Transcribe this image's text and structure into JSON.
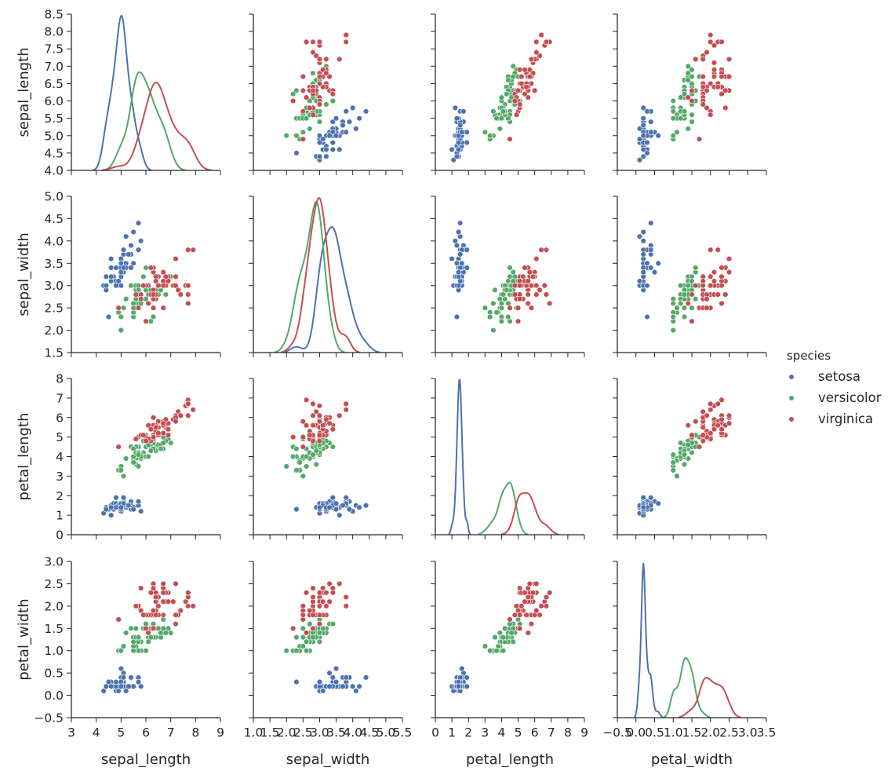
{
  "chart_data": {
    "type": "scatter",
    "layout": "pairplot",
    "variables": [
      "sepal_length",
      "sepal_width",
      "petal_length",
      "petal_width"
    ],
    "axes": {
      "sepal_length": {
        "range": [
          3,
          9
        ],
        "ticks": [
          3,
          4,
          5,
          6,
          7,
          8,
          9
        ],
        "tick_labels": [
          "3",
          "4",
          "5",
          "6",
          "7",
          "8",
          "9"
        ]
      },
      "sepal_width": {
        "range": [
          1,
          5.5
        ],
        "ticks": [
          1.0,
          1.5,
          2.0,
          2.5,
          3.0,
          3.5,
          4.0,
          4.5,
          5.0,
          5.5
        ],
        "tick_labels": [
          "1.0",
          "1.5",
          "2.0",
          "2.5",
          "3.0",
          "3.5",
          "4.0",
          "4.5",
          "5.0",
          "5.5"
        ]
      },
      "petal_length": {
        "range": [
          0,
          9
        ],
        "ticks": [
          0,
          1,
          2,
          3,
          4,
          5,
          6,
          7,
          8,
          9
        ],
        "tick_labels": [
          "0",
          "1",
          "2",
          "3",
          "4",
          "5",
          "6",
          "7",
          "8",
          "9"
        ]
      },
      "petal_width": {
        "range": [
          -0.5,
          3.5
        ],
        "ticks": [
          -0.5,
          0.0,
          0.5,
          1.0,
          1.5,
          2.0,
          2.5,
          3.0,
          3.5
        ],
        "tick_labels": [
          "−0.5",
          "0.0",
          "0.5",
          "1.0",
          "1.5",
          "2.0",
          "2.5",
          "3.0",
          "3.5"
        ]
      }
    },
    "row_axes": {
      "sepal_length": {
        "range": [
          4,
          8.5
        ],
        "ticks": [
          4.0,
          4.5,
          5.0,
          5.5,
          6.0,
          6.5,
          7.0,
          7.5,
          8.0,
          8.5
        ],
        "tick_labels": [
          "4.0",
          "4.5",
          "5.0",
          "5.5",
          "6.0",
          "6.5",
          "7.0",
          "7.5",
          "8.0",
          "8.5"
        ]
      },
      "sepal_width": {
        "range": [
          1.5,
          5
        ],
        "ticks": [
          1.5,
          2.0,
          2.5,
          3.0,
          3.5,
          4.0,
          4.5,
          5.0
        ],
        "tick_labels": [
          "1.5",
          "2.0",
          "2.5",
          "3.0",
          "3.5",
          "4.0",
          "4.5",
          "5.0"
        ]
      },
      "petal_length": {
        "range": [
          0,
          8
        ],
        "ticks": [
          0,
          1,
          2,
          3,
          4,
          5,
          6,
          7,
          8
        ],
        "tick_labels": [
          "0",
          "1",
          "2",
          "3",
          "4",
          "5",
          "6",
          "7",
          "8"
        ]
      },
      "petal_width": {
        "range": [
          -0.5,
          3
        ],
        "ticks": [
          -0.5,
          0.0,
          0.5,
          1.0,
          1.5,
          2.0,
          2.5,
          3.0
        ],
        "tick_labels": [
          "−0.5",
          "0.0",
          "0.5",
          "1.0",
          "1.5",
          "2.0",
          "2.5",
          "3.0"
        ]
      }
    },
    "legend": {
      "title": "species",
      "entries": [
        {
          "label": "setosa",
          "color": "#4c72b0"
        },
        {
          "label": "versicolor",
          "color": "#55a868"
        },
        {
          "label": "virginica",
          "color": "#c44e52"
        }
      ],
      "placement": "right"
    },
    "grid": false,
    "diagonal": "kde",
    "series": [
      {
        "name": "setosa",
        "color": "#4c72b0",
        "values": [
          [
            5.1,
            3.5,
            1.4,
            0.2
          ],
          [
            4.9,
            3.0,
            1.4,
            0.2
          ],
          [
            4.7,
            3.2,
            1.3,
            0.2
          ],
          [
            4.6,
            3.1,
            1.5,
            0.2
          ],
          [
            5.0,
            3.6,
            1.4,
            0.2
          ],
          [
            5.4,
            3.9,
            1.7,
            0.4
          ],
          [
            4.6,
            3.4,
            1.4,
            0.3
          ],
          [
            5.0,
            3.4,
            1.5,
            0.2
          ],
          [
            4.4,
            2.9,
            1.4,
            0.2
          ],
          [
            4.9,
            3.1,
            1.5,
            0.1
          ],
          [
            5.4,
            3.7,
            1.5,
            0.2
          ],
          [
            4.8,
            3.4,
            1.6,
            0.2
          ],
          [
            4.8,
            3.0,
            1.4,
            0.1
          ],
          [
            4.3,
            3.0,
            1.1,
            0.1
          ],
          [
            5.8,
            4.0,
            1.2,
            0.2
          ],
          [
            5.7,
            4.4,
            1.5,
            0.4
          ],
          [
            5.4,
            3.9,
            1.3,
            0.4
          ],
          [
            5.1,
            3.5,
            1.4,
            0.3
          ],
          [
            5.7,
            3.8,
            1.7,
            0.3
          ],
          [
            5.1,
            3.8,
            1.5,
            0.3
          ],
          [
            5.4,
            3.4,
            1.7,
            0.2
          ],
          [
            5.1,
            3.7,
            1.5,
            0.4
          ],
          [
            4.6,
            3.6,
            1.0,
            0.2
          ],
          [
            5.1,
            3.3,
            1.7,
            0.5
          ],
          [
            4.8,
            3.4,
            1.9,
            0.2
          ],
          [
            5.0,
            3.0,
            1.6,
            0.2
          ],
          [
            5.0,
            3.4,
            1.6,
            0.4
          ],
          [
            5.2,
            3.5,
            1.5,
            0.2
          ],
          [
            5.2,
            3.4,
            1.4,
            0.2
          ],
          [
            4.7,
            3.2,
            1.6,
            0.2
          ],
          [
            4.8,
            3.1,
            1.6,
            0.2
          ],
          [
            5.4,
            3.4,
            1.5,
            0.4
          ],
          [
            5.2,
            4.1,
            1.5,
            0.1
          ],
          [
            5.5,
            4.2,
            1.4,
            0.2
          ],
          [
            4.9,
            3.1,
            1.5,
            0.1
          ],
          [
            5.0,
            3.2,
            1.2,
            0.2
          ],
          [
            5.5,
            3.5,
            1.3,
            0.2
          ],
          [
            4.9,
            3.1,
            1.5,
            0.1
          ],
          [
            4.4,
            3.0,
            1.3,
            0.2
          ],
          [
            5.1,
            3.4,
            1.5,
            0.2
          ],
          [
            5.0,
            3.5,
            1.3,
            0.3
          ],
          [
            4.5,
            2.3,
            1.3,
            0.3
          ],
          [
            4.4,
            3.2,
            1.3,
            0.2
          ],
          [
            5.0,
            3.5,
            1.6,
            0.6
          ],
          [
            5.1,
            3.8,
            1.9,
            0.4
          ],
          [
            4.8,
            3.0,
            1.4,
            0.3
          ],
          [
            5.1,
            3.8,
            1.6,
            0.2
          ],
          [
            4.6,
            3.2,
            1.4,
            0.2
          ],
          [
            5.3,
            3.7,
            1.5,
            0.2
          ],
          [
            5.0,
            3.3,
            1.4,
            0.2
          ]
        ]
      },
      {
        "name": "versicolor",
        "color": "#55a868",
        "values": [
          [
            7.0,
            3.2,
            4.7,
            1.4
          ],
          [
            6.4,
            3.2,
            4.5,
            1.5
          ],
          [
            6.9,
            3.1,
            4.9,
            1.5
          ],
          [
            5.5,
            2.3,
            4.0,
            1.3
          ],
          [
            6.5,
            2.8,
            4.6,
            1.5
          ],
          [
            5.7,
            2.8,
            4.5,
            1.3
          ],
          [
            6.3,
            3.3,
            4.7,
            1.6
          ],
          [
            4.9,
            2.4,
            3.3,
            1.0
          ],
          [
            6.6,
            2.9,
            4.6,
            1.3
          ],
          [
            5.2,
            2.7,
            3.9,
            1.4
          ],
          [
            5.0,
            2.0,
            3.5,
            1.0
          ],
          [
            5.9,
            3.0,
            4.2,
            1.5
          ],
          [
            6.0,
            2.2,
            4.0,
            1.0
          ],
          [
            6.1,
            2.9,
            4.7,
            1.4
          ],
          [
            5.6,
            2.9,
            3.6,
            1.3
          ],
          [
            6.7,
            3.1,
            4.4,
            1.4
          ],
          [
            5.6,
            3.0,
            4.5,
            1.5
          ],
          [
            5.8,
            2.7,
            4.1,
            1.0
          ],
          [
            6.2,
            2.2,
            4.5,
            1.5
          ],
          [
            5.6,
            2.5,
            3.9,
            1.1
          ],
          [
            5.9,
            3.2,
            4.8,
            1.8
          ],
          [
            6.1,
            2.8,
            4.0,
            1.3
          ],
          [
            6.3,
            2.5,
            4.9,
            1.5
          ],
          [
            6.1,
            2.8,
            4.7,
            1.2
          ],
          [
            6.4,
            2.9,
            4.3,
            1.3
          ],
          [
            6.6,
            3.0,
            4.4,
            1.4
          ],
          [
            6.8,
            2.8,
            4.8,
            1.4
          ],
          [
            6.7,
            3.0,
            5.0,
            1.7
          ],
          [
            6.0,
            2.9,
            4.5,
            1.5
          ],
          [
            5.7,
            2.6,
            3.5,
            1.0
          ],
          [
            5.5,
            2.4,
            3.8,
            1.1
          ],
          [
            5.5,
            2.4,
            3.7,
            1.0
          ],
          [
            5.8,
            2.7,
            3.9,
            1.2
          ],
          [
            6.0,
            2.7,
            5.1,
            1.6
          ],
          [
            5.4,
            3.0,
            4.5,
            1.5
          ],
          [
            6.0,
            3.4,
            4.5,
            1.6
          ],
          [
            6.7,
            3.1,
            4.7,
            1.5
          ],
          [
            6.3,
            2.3,
            4.4,
            1.3
          ],
          [
            5.6,
            3.0,
            4.1,
            1.3
          ],
          [
            5.5,
            2.5,
            4.0,
            1.3
          ],
          [
            5.5,
            2.6,
            4.4,
            1.2
          ],
          [
            6.1,
            3.0,
            4.6,
            1.4
          ],
          [
            5.8,
            2.6,
            4.0,
            1.2
          ],
          [
            5.0,
            2.3,
            3.3,
            1.0
          ],
          [
            5.6,
            2.7,
            4.2,
            1.3
          ],
          [
            5.7,
            3.0,
            4.2,
            1.2
          ],
          [
            5.7,
            2.9,
            4.2,
            1.3
          ],
          [
            6.2,
            2.9,
            4.3,
            1.3
          ],
          [
            5.1,
            2.5,
            3.0,
            1.1
          ],
          [
            5.7,
            2.8,
            4.1,
            1.3
          ]
        ]
      },
      {
        "name": "virginica",
        "color": "#c44e52",
        "values": [
          [
            6.3,
            3.3,
            6.0,
            2.5
          ],
          [
            5.8,
            2.7,
            5.1,
            1.9
          ],
          [
            7.1,
            3.0,
            5.9,
            2.1
          ],
          [
            6.3,
            2.9,
            5.6,
            1.8
          ],
          [
            6.5,
            3.0,
            5.8,
            2.2
          ],
          [
            7.6,
            3.0,
            6.6,
            2.1
          ],
          [
            4.9,
            2.5,
            4.5,
            1.7
          ],
          [
            7.3,
            2.9,
            6.3,
            1.8
          ],
          [
            6.7,
            2.5,
            5.8,
            1.8
          ],
          [
            7.2,
            3.6,
            6.1,
            2.5
          ],
          [
            6.5,
            3.2,
            5.1,
            2.0
          ],
          [
            6.4,
            2.7,
            5.3,
            1.9
          ],
          [
            6.8,
            3.0,
            5.5,
            2.1
          ],
          [
            5.7,
            2.5,
            5.0,
            2.0
          ],
          [
            5.8,
            2.8,
            5.1,
            2.4
          ],
          [
            6.4,
            3.2,
            5.3,
            2.3
          ],
          [
            6.5,
            3.0,
            5.5,
            1.8
          ],
          [
            7.7,
            3.8,
            6.7,
            2.2
          ],
          [
            7.7,
            2.6,
            6.9,
            2.3
          ],
          [
            6.0,
            2.2,
            5.0,
            1.5
          ],
          [
            6.9,
            3.2,
            5.7,
            2.3
          ],
          [
            5.6,
            2.8,
            4.9,
            2.0
          ],
          [
            7.7,
            2.8,
            6.7,
            2.0
          ],
          [
            6.3,
            2.7,
            4.9,
            1.8
          ],
          [
            6.7,
            3.3,
            5.7,
            2.1
          ],
          [
            7.2,
            3.2,
            6.0,
            1.8
          ],
          [
            6.2,
            2.8,
            4.8,
            1.8
          ],
          [
            6.1,
            3.0,
            4.9,
            1.8
          ],
          [
            6.4,
            2.8,
            5.6,
            2.1
          ],
          [
            7.2,
            3.0,
            5.8,
            1.6
          ],
          [
            7.4,
            2.8,
            6.1,
            1.9
          ],
          [
            7.9,
            3.8,
            6.4,
            2.0
          ],
          [
            6.4,
            2.8,
            5.6,
            2.2
          ],
          [
            6.3,
            2.8,
            5.1,
            1.5
          ],
          [
            6.1,
            2.6,
            5.6,
            1.4
          ],
          [
            7.7,
            3.0,
            6.1,
            2.3
          ],
          [
            6.3,
            3.4,
            5.6,
            2.4
          ],
          [
            6.4,
            3.1,
            5.5,
            1.8
          ],
          [
            6.0,
            3.0,
            4.8,
            1.8
          ],
          [
            6.9,
            3.1,
            5.4,
            2.1
          ],
          [
            6.7,
            3.1,
            5.6,
            2.4
          ],
          [
            6.9,
            3.1,
            5.1,
            2.3
          ],
          [
            5.8,
            2.7,
            5.1,
            1.9
          ],
          [
            6.8,
            3.2,
            5.9,
            2.3
          ],
          [
            6.7,
            3.3,
            5.7,
            2.5
          ],
          [
            6.7,
            3.0,
            5.2,
            2.3
          ],
          [
            6.3,
            2.5,
            5.0,
            1.9
          ],
          [
            6.5,
            3.0,
            5.2,
            2.0
          ],
          [
            6.2,
            3.4,
            5.4,
            2.3
          ],
          [
            5.9,
            3.0,
            5.1,
            1.8
          ]
        ]
      }
    ]
  }
}
